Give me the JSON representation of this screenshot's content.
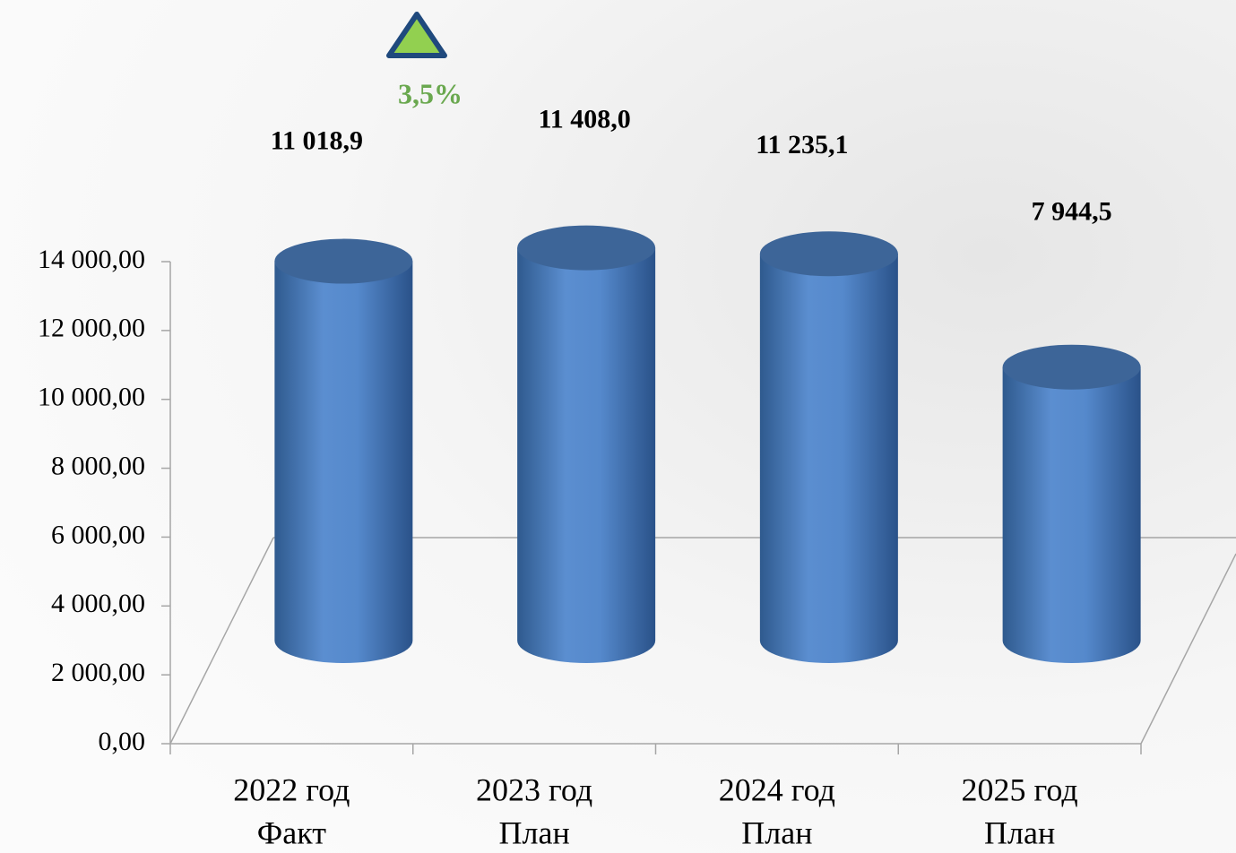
{
  "chart_data": {
    "type": "cylinder-bar",
    "categories": [
      [
        "2022 год",
        "Факт"
      ],
      [
        "2023 год",
        "План"
      ],
      [
        "2024 год",
        "План"
      ],
      [
        "2025 год",
        "План"
      ]
    ],
    "values": [
      11018.9,
      11408.0,
      11235.1,
      7944.5
    ],
    "value_labels": [
      "11 018,9",
      "11 408,0",
      "11 235,1",
      "7 944,5"
    ],
    "color": "#4f81bd",
    "ylim": [
      0,
      14000
    ],
    "yticks": [
      {
        "value": 0,
        "label": "0,00"
      },
      {
        "value": 2000,
        "label": "2 000,00"
      },
      {
        "value": 4000,
        "label": "4 000,00"
      },
      {
        "value": 6000,
        "label": "6 000,00"
      },
      {
        "value": 8000,
        "label": "8 000,00"
      },
      {
        "value": 10000,
        "label": "10 000,00"
      },
      {
        "value": 12000,
        "label": "12 000,00"
      },
      {
        "value": 14000,
        "label": "14 000,00"
      }
    ],
    "grid": true,
    "annotation": {
      "text": "3,5%",
      "color": "#6aa84f"
    }
  }
}
